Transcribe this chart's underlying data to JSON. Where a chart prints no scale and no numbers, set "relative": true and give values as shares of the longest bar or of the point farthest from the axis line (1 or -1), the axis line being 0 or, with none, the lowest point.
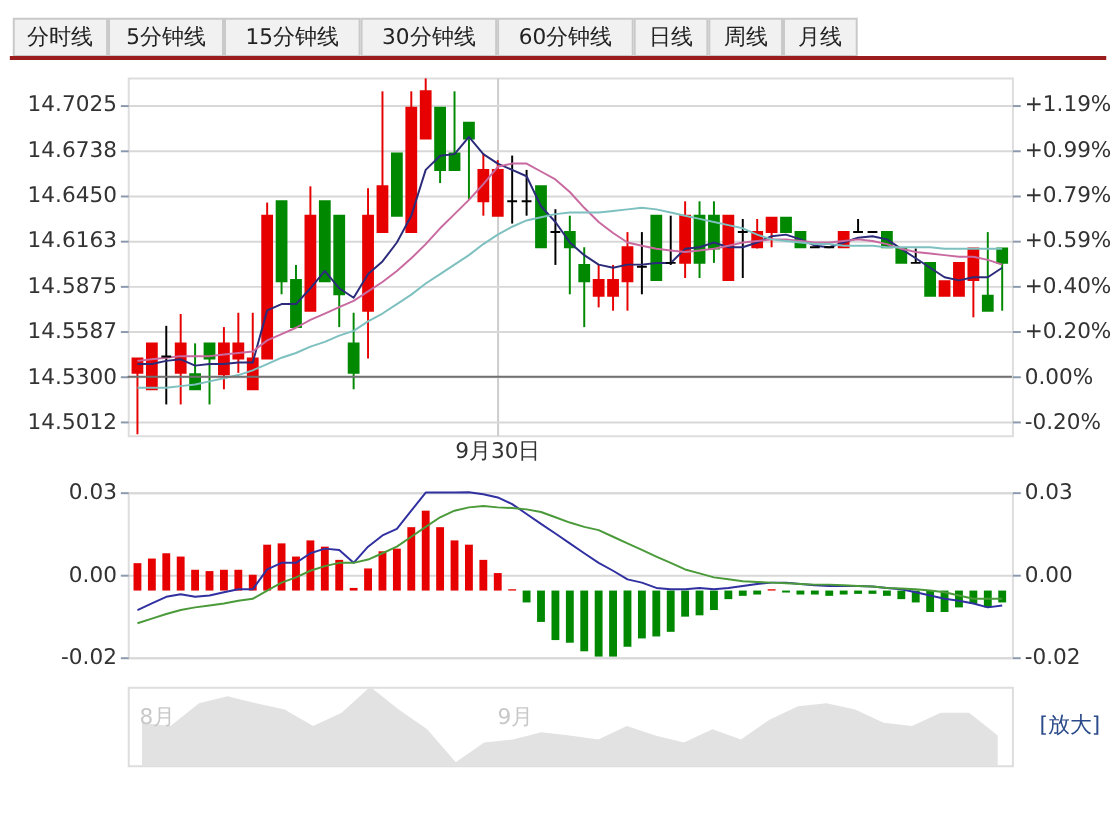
{
  "chart_data": [
    {
      "type": "other",
      "annotations": [
        "分时线",
        "5分钟线",
        "15分钟线",
        "30分钟线",
        "60分钟线",
        "日线",
        "周线",
        "月线"
      ]
    },
    {
      "type": "candlestick",
      "categories": [
        null,
        null,
        null,
        null,
        null,
        null,
        null,
        null,
        null,
        null,
        null,
        null,
        null,
        null,
        null,
        null,
        null,
        null,
        null,
        null,
        null,
        null,
        null,
        null,
        null,
        "9月30日",
        null,
        null,
        null,
        null,
        null,
        null,
        null,
        null,
        null,
        null,
        null,
        null,
        null,
        null,
        null,
        null,
        null,
        null,
        null,
        null,
        null,
        null,
        null,
        null,
        null,
        null,
        null,
        null,
        null,
        null,
        null,
        null,
        null,
        null,
        null
      ],
      "ohlc": [
        [
          14.5324,
          14.5415,
          14.4935,
          14.5415
        ],
        [
          14.522,
          14.5511,
          14.522,
          14.5511
        ],
        [
          14.5428,
          14.5622,
          14.5124,
          14.5428
        ],
        [
          14.5324,
          14.5697,
          14.5124,
          14.5511
        ],
        [
          14.5315,
          14.5511,
          14.522,
          14.522
        ],
        [
          14.5511,
          14.5511,
          14.5124,
          14.5415
        ],
        [
          14.5315,
          14.5614,
          14.522,
          14.5511
        ],
        [
          14.5415,
          14.5705,
          14.5324,
          14.5511
        ],
        [
          14.522,
          14.5705,
          14.522,
          14.5415
        ],
        [
          14.5415,
          14.6403,
          14.5415,
          14.632
        ],
        [
          14.6411,
          14.6411,
          14.5822,
          14.5904
        ],
        [
          14.5913,
          14.6008,
          14.5614,
          14.5614
        ],
        [
          14.5718,
          14.6506,
          14.5718,
          14.632
        ],
        [
          14.6411,
          14.6411,
          14.5904,
          14.5904
        ],
        [
          14.632,
          14.632,
          14.5614,
          14.5822
        ],
        [
          14.5511,
          14.5705,
          14.522,
          14.5324
        ],
        [
          14.5718,
          14.6494,
          14.5415,
          14.632
        ],
        [
          14.6216,
          14.7108,
          14.6216,
          14.6506
        ],
        [
          14.6714,
          14.6714,
          14.632,
          14.632
        ],
        [
          14.6216,
          14.7108,
          14.6216,
          14.7004
        ],
        [
          14.6809,
          14.719,
          14.6809,
          14.7108
        ],
        [
          14.7004,
          14.7004,
          14.6527,
          14.661
        ],
        [
          14.6714,
          14.7108,
          14.661,
          14.661
        ],
        [
          14.6909,
          14.6909,
          14.6423,
          14.6809
        ],
        [
          14.6411,
          14.6714,
          14.632,
          14.661
        ],
        [
          14.632,
          14.6672,
          14.632,
          14.661
        ],
        [
          14.6411,
          14.6701,
          14.627,
          14.6411
        ],
        [
          14.6411,
          14.661,
          14.632,
          14.6411
        ],
        [
          14.6506,
          14.6506,
          14.612,
          14.612
        ],
        [
          14.6216,
          14.6361,
          14.6008,
          14.6216
        ],
        [
          14.6216,
          14.632,
          14.5822,
          14.612
        ],
        [
          14.6008,
          14.612,
          14.5614,
          14.5904
        ],
        [
          14.5813,
          14.6008,
          14.5739,
          14.5913
        ],
        [
          14.5813,
          14.6008,
          14.5718,
          14.5913
        ],
        [
          14.5904,
          14.6216,
          14.5718,
          14.612
        ],
        [
          14.5996,
          14.6216,
          14.5822,
          14.5996
        ],
        [
          14.632,
          14.632,
          14.5913,
          14.5913
        ],
        [
          14.6021,
          14.632,
          14.6008,
          14.6021
        ],
        [
          14.6021,
          14.6411,
          14.5925,
          14.632
        ],
        [
          14.632,
          14.6411,
          14.5925,
          14.6021
        ],
        [
          14.632,
          14.6411,
          14.6021,
          14.6112
        ],
        [
          14.5913,
          14.632,
          14.5913,
          14.632
        ],
        [
          14.6216,
          14.6299,
          14.5925,
          14.6216
        ],
        [
          14.612,
          14.6299,
          14.6112,
          14.6216
        ],
        [
          14.6216,
          14.6307,
          14.612,
          14.6307
        ],
        [
          14.6307,
          14.6307,
          14.6216,
          14.6216
        ],
        [
          14.6216,
          14.6216,
          14.612,
          14.612
        ],
        [
          14.612,
          14.612,
          14.612,
          14.612
        ],
        [
          14.612,
          14.612,
          14.612,
          14.612
        ],
        [
          14.612,
          14.6216,
          14.612,
          14.6216
        ],
        [
          14.6216,
          14.6299,
          14.6216,
          14.6216
        ],
        [
          14.6216,
          14.6216,
          14.6216,
          14.6216
        ],
        [
          14.6216,
          14.6216,
          14.612,
          14.612
        ],
        [
          14.6112,
          14.6112,
          14.6021,
          14.6021
        ],
        [
          14.6021,
          14.6112,
          14.6021,
          14.6021
        ],
        [
          14.6021,
          14.6021,
          14.5813,
          14.5813
        ],
        [
          14.5813,
          14.5904,
          14.5813,
          14.5904
        ],
        [
          14.5813,
          14.6021,
          14.5813,
          14.6021
        ],
        [
          14.5913,
          14.6112,
          14.5676,
          14.6112
        ],
        [
          14.5813,
          14.6216,
          14.5718,
          14.5718
        ],
        [
          14.6112,
          14.6112,
          14.5718,
          14.6021
        ]
      ],
      "colors": [
        "#e60000",
        "#e60000",
        "#000000",
        "#e60000",
        "#008800",
        "#008800",
        "#e60000",
        "#e60000",
        "#e60000",
        "#e60000",
        "#008800",
        "#008800",
        "#e60000",
        "#008800",
        "#008800",
        "#008800",
        "#e60000",
        "#e60000",
        "#008800",
        "#e60000",
        "#e60000",
        "#008800",
        "#008800",
        "#008800",
        "#e60000",
        "#e60000",
        "#000000",
        "#000000",
        "#008800",
        "#000000",
        "#008800",
        "#008800",
        "#e60000",
        "#e60000",
        "#e60000",
        "#000000",
        "#008800",
        "#000000",
        "#e60000",
        "#008800",
        "#008800",
        "#e60000",
        "#000000",
        "#e60000",
        "#e60000",
        "#008800",
        "#008800",
        "#000000",
        "#000000",
        "#e60000",
        "#000000",
        "#000000",
        "#008800",
        "#008800",
        "#000000",
        "#008800",
        "#e60000",
        "#e60000",
        "#e60000",
        "#008800",
        "#008800"
      ],
      "series": [
        {
          "type": "line",
          "color": "#2b2b7a",
          "values": [
            14.538,
            14.538,
            14.54,
            14.541,
            14.537,
            14.538,
            14.538,
            14.539,
            14.539,
            14.572,
            14.576,
            14.576,
            14.586,
            14.597,
            14.586,
            14.58,
            14.595,
            14.603,
            14.615,
            14.632,
            14.661,
            14.67,
            14.671,
            14.682,
            14.671,
            14.665,
            14.661,
            14.657,
            14.638,
            14.628,
            14.615,
            14.607,
            14.601,
            14.599,
            14.601,
            14.601,
            14.602,
            14.602,
            14.611,
            14.612,
            14.615,
            14.612,
            14.612,
            14.615,
            14.619,
            14.62,
            14.617,
            14.613,
            14.612,
            14.615,
            14.618,
            14.619,
            14.617,
            14.611,
            14.605,
            14.599,
            14.593,
            14.591,
            14.593,
            14.593,
            14.599
          ]
        },
        {
          "type": "line",
          "color": "#c86aa0",
          "values": [
            14.54,
            14.541,
            14.542,
            14.543,
            14.543,
            14.543,
            14.544,
            14.545,
            14.546,
            14.553,
            14.557,
            14.561,
            14.566,
            14.57,
            14.574,
            14.578,
            14.584,
            14.59,
            14.597,
            14.605,
            14.614,
            14.624,
            14.633,
            14.642,
            14.652,
            14.663,
            14.665,
            14.665,
            14.66,
            14.655,
            14.647,
            14.637,
            14.628,
            14.621,
            14.615,
            14.613,
            14.611,
            14.61,
            14.609,
            14.61,
            14.611,
            14.613,
            14.615,
            14.616,
            14.617,
            14.617,
            14.616,
            14.615,
            14.615,
            14.616,
            14.617,
            14.616,
            14.614,
            14.611,
            14.609,
            14.608,
            14.607,
            14.606,
            14.606,
            14.604,
            14.601
          ]
        },
        {
          "type": "line",
          "color": "#7ec0c0",
          "values": [
            14.523,
            14.523,
            14.523,
            14.524,
            14.525,
            14.527,
            14.529,
            14.531,
            14.534,
            14.538,
            14.542,
            14.545,
            14.549,
            14.552,
            14.556,
            14.559,
            14.565,
            14.57,
            14.576,
            14.582,
            14.589,
            14.595,
            14.601,
            14.607,
            14.614,
            14.62,
            14.625,
            14.629,
            14.631,
            14.633,
            14.634,
            14.634,
            14.634,
            14.635,
            14.636,
            14.637,
            14.636,
            14.634,
            14.632,
            14.63,
            14.628,
            14.626,
            14.624,
            14.62,
            14.617,
            14.616,
            14.615,
            14.614,
            14.614,
            14.613,
            14.613,
            14.613,
            14.612,
            14.612,
            14.612,
            14.612,
            14.611,
            14.611,
            14.611,
            14.611,
            14.611
          ]
        }
      ],
      "ylim": [
        14.4929,
        14.7195
      ],
      "yticks": [
        14.5012,
        {
          "value": 14.53,
          "label": "14.5300"
        },
        14.5587,
        14.5875,
        14.6163,
        {
          "value": 14.645,
          "label": "14.6450"
        },
        14.6738,
        14.7025
      ],
      "y2lim": [
        -0.2553,
        1.3042
      ],
      "y2ticks": [
        {
          "value": -0.1982,
          "label": "-0.20%"
        },
        {
          "value": 0,
          "label": "0.00%"
        },
        {
          "value": 0.1975,
          "label": "+0.20%"
        },
        {
          "value": 0.3957,
          "label": "+0.40%"
        },
        {
          "value": 0.5939,
          "label": "+0.59%"
        },
        {
          "value": 0.7915,
          "label": "+0.79%"
        },
        {
          "value": 0.9897,
          "label": "+0.99%"
        },
        {
          "value": 1.1872,
          "label": "+1.19%"
        }
      ],
      "ref_lines": [
        {
          "axis": "y2",
          "value": 0,
          "color": "#707070"
        }
      ],
      "grid": true
    },
    {
      "type": "bar",
      "categories": [
        null,
        null,
        null,
        null,
        null,
        null,
        null,
        null,
        null,
        null,
        null,
        null,
        null,
        null,
        null,
        null,
        null,
        null,
        null,
        null,
        null,
        null,
        null,
        null,
        null,
        null,
        null,
        null,
        null,
        null,
        null,
        null,
        null,
        null,
        null,
        null,
        null,
        null,
        null,
        null,
        null,
        null,
        null,
        null,
        null,
        null,
        null,
        null,
        null,
        null,
        null,
        null,
        null,
        null,
        null,
        null,
        null,
        null,
        null,
        null,
        null
      ],
      "values": [
        0.0083,
        0.0097,
        0.0113,
        0.0103,
        0.0063,
        0.0059,
        0.0063,
        0.0063,
        0.0048,
        0.0139,
        0.0143,
        0.0103,
        0.0152,
        0.0133,
        0.0093,
        0.0008,
        0.0067,
        0.0119,
        0.0127,
        0.0192,
        0.0242,
        0.0192,
        0.0152,
        0.0139,
        0.0093,
        0.0053,
        0.0004,
        -0.0036,
        -0.0095,
        -0.015,
        -0.0158,
        -0.0184,
        -0.02,
        -0.02,
        -0.017,
        -0.0145,
        -0.0139,
        -0.0125,
        -0.0079,
        -0.0075,
        -0.0059,
        -0.0026,
        -0.0016,
        -0.0012,
        0.0004,
        -0.0006,
        -0.0012,
        -0.0012,
        -0.0016,
        -0.0012,
        -0.001,
        -0.001,
        -0.0016,
        -0.0026,
        -0.0036,
        -0.0065,
        -0.0065,
        -0.0051,
        -0.004,
        -0.0051,
        -0.0036
      ],
      "base": [
        -0.0048,
        -0.0048,
        -0.0048,
        -0.0048,
        -0.0048,
        -0.0048,
        -0.0048,
        -0.0048,
        -0.0048,
        -0.0048,
        -0.0048,
        -0.0048,
        -0.0048,
        -0.0048,
        -0.0048,
        -0.0048,
        -0.0048,
        -0.0048,
        -0.0048,
        -0.0048,
        -0.0048,
        -0.0048,
        -0.0048,
        -0.0048,
        -0.0048,
        -0.0048,
        -0.0048,
        -0.0048,
        -0.0048,
        -0.0048,
        -0.0048,
        -0.0048,
        -0.0048,
        -0.0048,
        -0.0048,
        -0.0048,
        -0.0048,
        -0.0048,
        -0.0048,
        -0.0048,
        -0.0048,
        -0.0048,
        -0.0048,
        -0.0048,
        -0.0048,
        -0.0048,
        -0.0048,
        -0.0048,
        -0.0048,
        -0.0048,
        -0.0048,
        -0.0048,
        -0.0048,
        -0.0048,
        -0.0048,
        -0.0048,
        -0.0048,
        -0.0048,
        -0.0048,
        -0.0048,
        -0.0048
      ],
      "colors": [
        "#e60000",
        "#e60000",
        "#e60000",
        "#e60000",
        "#e60000",
        "#e60000",
        "#e60000",
        "#e60000",
        "#e60000",
        "#e60000",
        "#e60000",
        "#e60000",
        "#e60000",
        "#e60000",
        "#e60000",
        "#e60000",
        "#e60000",
        "#e60000",
        "#e60000",
        "#e60000",
        "#e60000",
        "#e60000",
        "#e60000",
        "#e60000",
        "#e60000",
        "#e60000",
        "#e60000",
        "#008800",
        "#008800",
        "#008800",
        "#008800",
        "#008800",
        "#008800",
        "#008800",
        "#008800",
        "#008800",
        "#008800",
        "#008800",
        "#008800",
        "#008800",
        "#008800",
        "#008800",
        "#008800",
        "#008800",
        "#e60000",
        "#008800",
        "#008800",
        "#008800",
        "#008800",
        "#008800",
        "#008800",
        "#008800",
        "#008800",
        "#008800",
        "#008800",
        "#008800",
        "#008800",
        "#008800",
        "#008800",
        "#008800",
        "#008800"
      ],
      "series": [
        {
          "type": "line",
          "color": "#3030a0",
          "values": [
            -0.0107,
            -0.0087,
            -0.0067,
            -0.0059,
            -0.0067,
            -0.0063,
            -0.0053,
            -0.0044,
            -0.0044,
            0.0016,
            0.0036,
            0.0036,
            0.0065,
            0.0079,
            0.0075,
            0.0036,
            0.0085,
            0.0119,
            0.0139,
            0.0194,
            0.0249,
            0.0249,
            0.0249,
            0.025,
            0.0244,
            0.0234,
            0.0214,
            0.0184,
            0.0154,
            0.0125,
            0.0095,
            0.0065,
            0.0036,
            0.0012,
            -0.0014,
            -0.0024,
            -0.004,
            -0.0044,
            -0.0044,
            -0.004,
            -0.0044,
            -0.004,
            -0.0034,
            -0.0028,
            -0.0024,
            -0.0024,
            -0.0028,
            -0.0032,
            -0.0034,
            -0.0034,
            -0.0034,
            -0.0036,
            -0.004,
            -0.0044,
            -0.0053,
            -0.0063,
            -0.0073,
            -0.0079,
            -0.0087,
            -0.0099,
            -0.0093
          ]
        },
        {
          "type": "line",
          "color": "#4a9a3a",
          "axis": "y2",
          "values": [
            -0.0147,
            -0.0133,
            -0.0119,
            -0.0107,
            -0.0099,
            -0.0093,
            -0.0087,
            -0.0079,
            -0.0073,
            -0.0048,
            -0.0024,
            -0.0008,
            0.0012,
            0.0026,
            0.0036,
            0.0036,
            0.0046,
            0.0065,
            0.0085,
            0.0115,
            0.0145,
            0.0174,
            0.0194,
            0.0204,
            0.0208,
            0.0204,
            0.0202,
            0.0198,
            0.019,
            0.0174,
            0.0158,
            0.0145,
            0.0135,
            0.0115,
            0.0095,
            0.0075,
            0.0055,
            0.0036,
            0.0016,
            0.0004,
            -0.0008,
            -0.0014,
            -0.002,
            -0.0022,
            -0.0024,
            -0.0026,
            -0.0028,
            -0.003,
            -0.003,
            -0.0032,
            -0.0034,
            -0.0036,
            -0.004,
            -0.0042,
            -0.0044,
            -0.0048,
            -0.0053,
            -0.0063,
            -0.0073,
            -0.0073,
            -0.0073
          ]
        }
      ],
      "ylim": [
        -0.025,
        0.025
      ],
      "yticks": [
        {
          "value": 0.025,
          "label": "0.03"
        },
        {
          "value": 0,
          "label": "0.00"
        },
        {
          "value": -0.025,
          "label": "-0.02"
        }
      ],
      "y2lim": [
        -0.025,
        0.025
      ],
      "y2ticks": [
        {
          "value": 0.025,
          "label": "0.03"
        },
        {
          "value": 0,
          "label": "0.00"
        },
        {
          "value": -0.025,
          "label": "-0.02"
        }
      ],
      "grid": "y"
    },
    {
      "type": "area",
      "relative": true,
      "categories": [
        null,
        null,
        null,
        null,
        null,
        null,
        null,
        null,
        null,
        null,
        null,
        null,
        null,
        null,
        null,
        null,
        null,
        null,
        null,
        null,
        null,
        null,
        null,
        null,
        null,
        null,
        null,
        null,
        null,
        null,
        null
      ],
      "series": [
        {
          "color": "#e2e2e2",
          "values": [
            0.54,
            0.5,
            0.79,
            0.88,
            0.79,
            0.71,
            0.5,
            0.67,
            1.0,
            0.71,
            0.46,
            0.04,
            0.29,
            0.33,
            0.42,
            0.38,
            0.33,
            0.5,
            0.38,
            0.29,
            0.46,
            0.33,
            0.58,
            0.75,
            0.79,
            0.71,
            0.54,
            0.5,
            0.67,
            0.67,
            0.38
          ]
        }
      ],
      "annotations": [
        "8月",
        "9月",
        "[放大]"
      ]
    }
  ]
}
